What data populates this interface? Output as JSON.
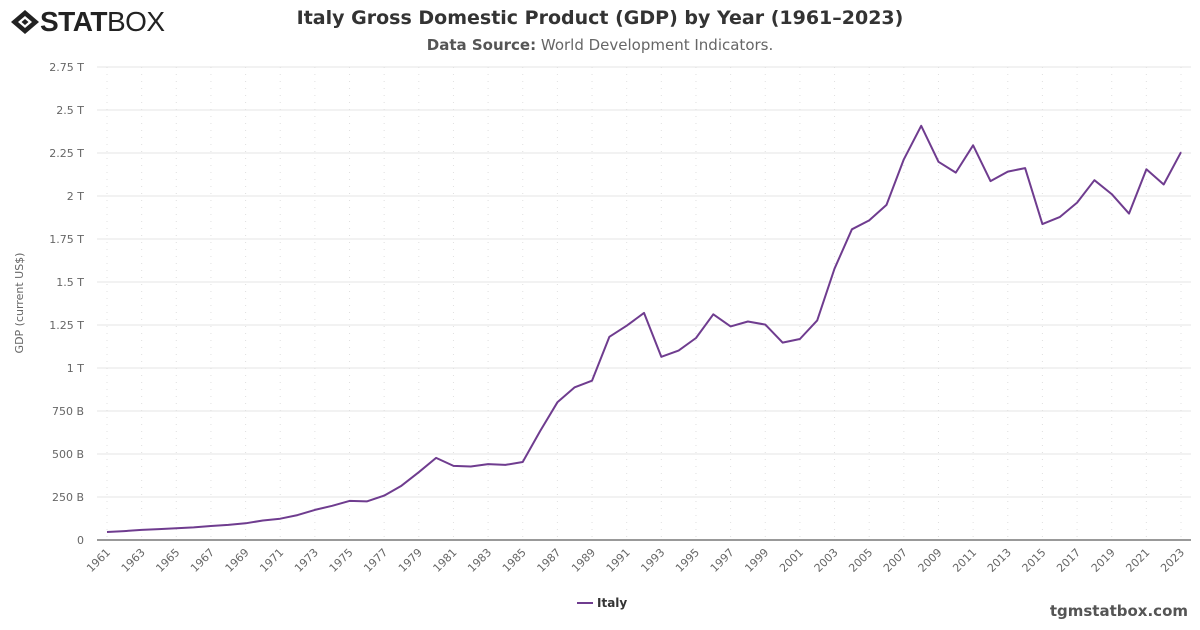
{
  "brand": {
    "logo_text_bold": "STAT",
    "logo_text_light": "BOX"
  },
  "header": {
    "title": "Italy Gross Domestic Product (GDP) by Year (1961–2023)",
    "subtitle_label": "Data Source:",
    "subtitle_value": "World Development Indicators."
  },
  "footer": {
    "site": "tgmstatbox.com"
  },
  "colors": {
    "series": "#6f3c8f",
    "grid": "#e6e6e6"
  },
  "chart_data": {
    "type": "line",
    "title": "Italy Gross Domestic Product (GDP) by Year (1961–2023)",
    "ylabel": "GDP (current US$)",
    "xlabel": "",
    "ylim": [
      0,
      2750
    ],
    "y_unit": "billion US$",
    "y_ticks": [
      0,
      250,
      500,
      750,
      1000,
      1250,
      1500,
      1750,
      2000,
      2250,
      2500,
      2750
    ],
    "y_tick_labels": [
      "0",
      "250 B",
      "500 B",
      "750 B",
      "1 T",
      "1.25 T",
      "1.5 T",
      "1.75 T",
      "2 T",
      "2.25 T",
      "2.5 T",
      "2.75 T"
    ],
    "x_tick_labels": [
      "1961",
      "1963",
      "1965",
      "1967",
      "1969",
      "1971",
      "1973",
      "1975",
      "1977",
      "1979",
      "1981",
      "1983",
      "1985",
      "1987",
      "1989",
      "1991",
      "1993",
      "1995",
      "1997",
      "1999",
      "2001",
      "2003",
      "2005",
      "2007",
      "2009",
      "2011",
      "2013",
      "2015",
      "2017",
      "2019",
      "2021",
      "2023"
    ],
    "grid": true,
    "legend": "bottom-center",
    "series": [
      {
        "name": "Italy",
        "x": [
          1961,
          1962,
          1963,
          1964,
          1965,
          1966,
          1967,
          1968,
          1969,
          1970,
          1971,
          1972,
          1973,
          1974,
          1975,
          1976,
          1977,
          1978,
          1979,
          1980,
          1981,
          1982,
          1983,
          1984,
          1985,
          1986,
          1987,
          1988,
          1989,
          1990,
          1991,
          1992,
          1993,
          1994,
          1995,
          1996,
          1997,
          1998,
          1999,
          2000,
          2001,
          2002,
          2003,
          2004,
          2005,
          2006,
          2007,
          2008,
          2009,
          2010,
          2011,
          2012,
          2013,
          2014,
          2015,
          2016,
          2017,
          2018,
          2019,
          2020,
          2021,
          2022,
          2023
        ],
        "values": [
          46.6,
          52.0,
          58.7,
          63.2,
          67.9,
          73.2,
          81.2,
          87.9,
          97.0,
          113.4,
          124.1,
          144.8,
          174.9,
          199.1,
          227.4,
          224.6,
          258.0,
          315.6,
          394.0,
          477.3,
          430.7,
          427.2,
          441.2,
          436.5,
          453.3,
          633.0,
          800.6,
          887.9,
          926.0,
          1181.2,
          1246.2,
          1320.2,
          1064.9,
          1101.3,
          1174.7,
          1312.2,
          1241.7,
          1270.4,
          1252.4,
          1147.8,
          1168.8,
          1276.8,
          1577.5,
          1806.5,
          1858.2,
          1948.0,
          2213.0,
          2408.0,
          2199.0,
          2136.1,
          2294.6,
          2086.9,
          2141.9,
          2162.0,
          1836.6,
          1877.1,
          1961.8,
          2091.9,
          2011.3,
          1897.5,
          2155.4,
          2066.9,
          2254.9
        ]
      }
    ]
  }
}
